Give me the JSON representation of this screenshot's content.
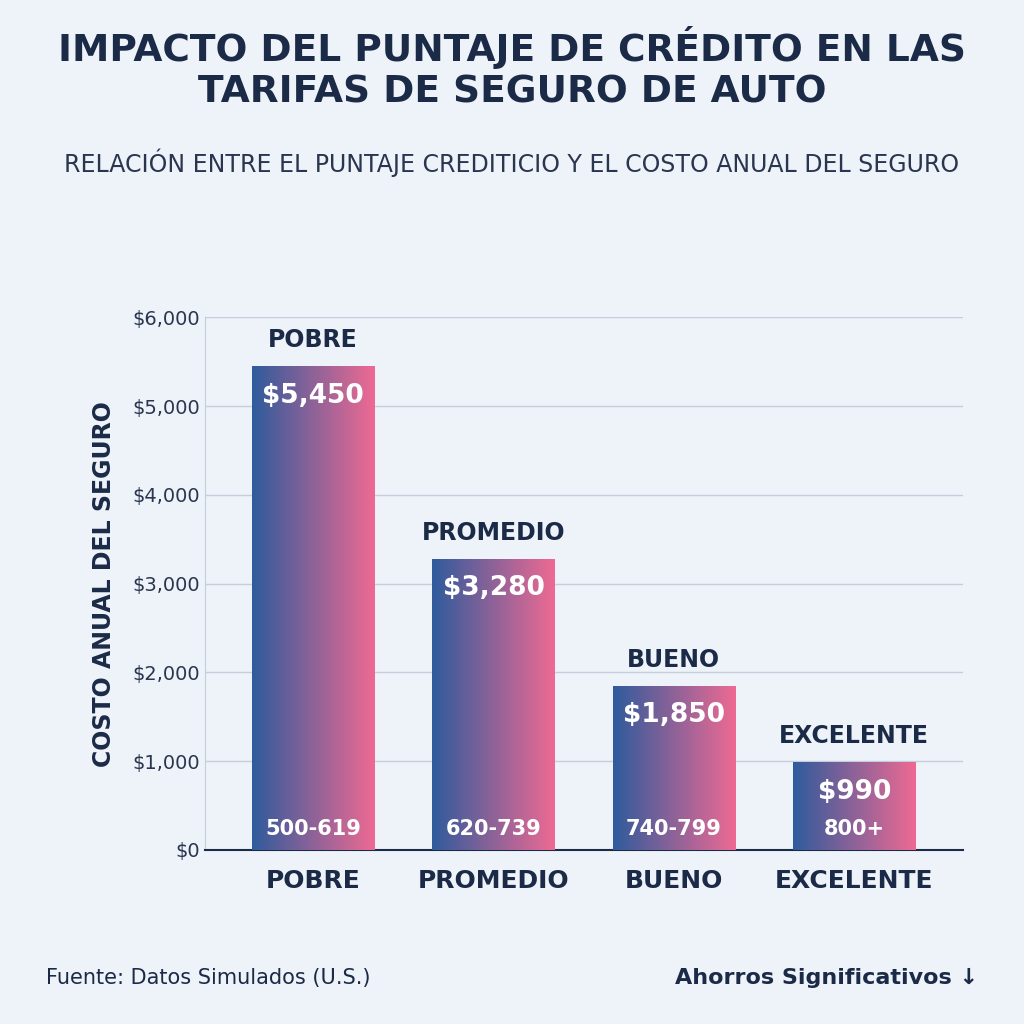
{
  "chart_data": {
    "type": "bar",
    "title": "IMPACTO DEL PUNTAJE DE CRÉDITO EN LAS TARIFAS DE SEGURO DE AUTO",
    "subtitle": "RELACIÓN ENTRE EL PUNTAJE CREDITICIO Y EL COSTO ANUAL DEL SEGURO",
    "y_label": "COSTO ANUAL DEL SEGURO",
    "categories": [
      "POBRE",
      "PROMEDIO",
      "BUENO",
      "EXCELENTE"
    ],
    "values": [
      5450,
      3280,
      1850,
      990
    ],
    "value_labels": [
      "$5,450",
      "$3,280",
      "$1,850",
      "$990"
    ],
    "score_ranges": [
      "500-619",
      "620-739",
      "740-799",
      "800+"
    ],
    "data_labels": true,
    "color": "#2f5b9d",
    "ylim": [
      0,
      6000
    ],
    "yticks": [
      {
        "value": 0,
        "label": "$0"
      },
      {
        "value": 1000,
        "label": "$1,000"
      },
      {
        "value": 2000,
        "label": "$2,000"
      },
      {
        "value": 3000,
        "label": "$3,000"
      },
      {
        "value": 4000,
        "label": "$4,000"
      },
      {
        "value": 5000,
        "label": "$5,000"
      },
      {
        "value": 6000,
        "label": "$6,000"
      }
    ],
    "grid": true,
    "source": "Fuente: Datos Simulados (U.S.)",
    "note": "Ahorros Significativos ↓"
  }
}
